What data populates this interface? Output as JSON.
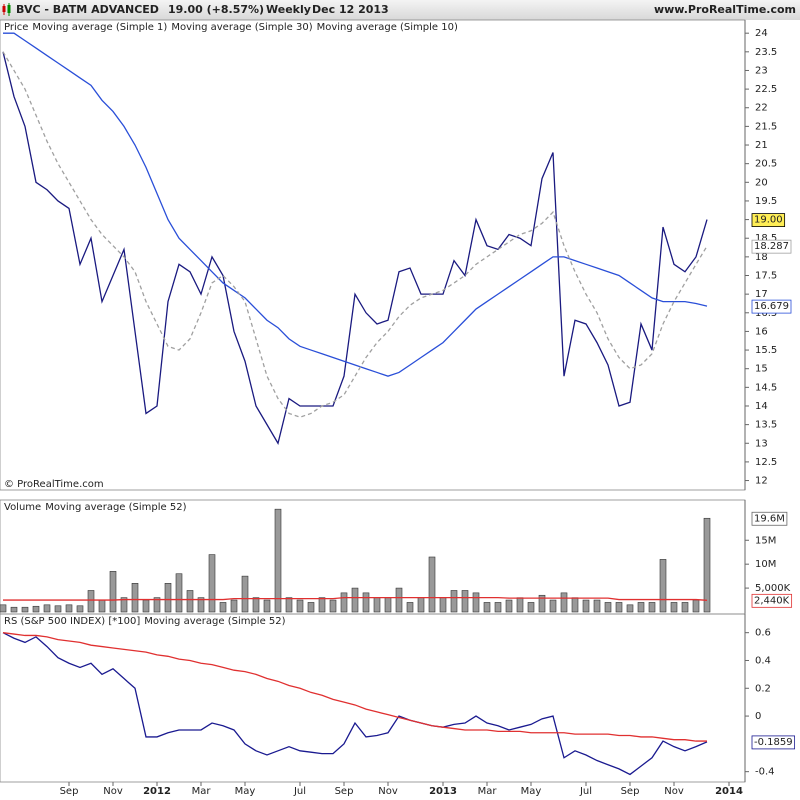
{
  "header": {
    "symbol": "BVC - BATM ADVANCED",
    "quote": "19.00 (+8.57%)",
    "period": "Weekly",
    "date": "Dec 12 2013",
    "site": "www.ProRealTime.com"
  },
  "chart_data": [
    {
      "type": "line",
      "title": "Price",
      "copyright": "© ProRealTime.com",
      "ylim": [
        11.8,
        24.3
      ],
      "yticks": [
        12,
        12.5,
        13,
        13.5,
        14,
        14.5,
        15,
        15.5,
        16,
        16.5,
        17,
        17.5,
        18,
        18.5,
        19,
        19.5,
        20,
        20.5,
        21,
        21.5,
        22,
        22.5,
        23,
        23.5,
        24
      ],
      "series": [
        {
          "name": "Moving average (Simple 1)",
          "color": "#1a1a80",
          "last_label": "19.00",
          "label_fill": "#ffee55",
          "values": [
            23.5,
            22.3,
            21.5,
            20,
            19.8,
            19.5,
            19.3,
            17.8,
            18.5,
            16.8,
            17.5,
            18.2,
            16,
            13.8,
            14,
            16.8,
            17.8,
            17.6,
            17,
            18,
            17.5,
            16,
            15.2,
            14,
            13.5,
            13,
            14.2,
            14,
            14,
            14,
            14,
            14.8,
            17,
            16.5,
            16.2,
            16.3,
            17.6,
            17.7,
            17,
            17,
            17,
            17.9,
            17.5,
            19,
            18.3,
            18.2,
            18.6,
            18.5,
            18.3,
            20.1,
            20.8,
            14.8,
            16.3,
            16.2,
            15.7,
            15.1,
            14,
            14.1,
            16.2,
            15.5,
            18.8,
            17.8,
            17.6,
            18,
            19,
            null,
            null
          ]
        },
        {
          "name": "Moving average (Simple 30)",
          "color": "#2a4fd8",
          "last_label": "16.679",
          "values": [
            24,
            24,
            23.8,
            23.6,
            23.4,
            23.2,
            23,
            22.8,
            22.6,
            22.2,
            21.9,
            21.5,
            21,
            20.4,
            19.7,
            19,
            18.5,
            18.2,
            17.9,
            17.6,
            17.3,
            17.1,
            16.9,
            16.6,
            16.3,
            16.1,
            15.8,
            15.6,
            15.5,
            15.4,
            15.3,
            15.2,
            15.1,
            15,
            14.9,
            14.8,
            14.9,
            15.1,
            15.3,
            15.5,
            15.7,
            16,
            16.3,
            16.6,
            16.8,
            17,
            17.2,
            17.4,
            17.6,
            17.8,
            18,
            18,
            17.9,
            17.8,
            17.7,
            17.6,
            17.5,
            17.3,
            17.1,
            16.9,
            16.8,
            16.8,
            16.8,
            16.75,
            16.679,
            null,
            null
          ]
        },
        {
          "name": "Moving average (Simple 10)",
          "color": "#a0a0a0",
          "line_style": "dashed",
          "last_label": "18.287",
          "values": [
            23.5,
            23,
            22.5,
            21.8,
            21.1,
            20.5,
            20,
            19.5,
            19,
            18.6,
            18.3,
            18,
            17.6,
            16.8,
            16.2,
            15.6,
            15.5,
            15.8,
            16.5,
            17.3,
            17.5,
            17.2,
            16.8,
            15.8,
            14.8,
            14.2,
            13.8,
            13.7,
            13.8,
            14,
            14.1,
            14.3,
            14.8,
            15.3,
            15.7,
            16,
            16.4,
            16.7,
            16.9,
            17,
            17.1,
            17.3,
            17.5,
            17.8,
            18,
            18.2,
            18.4,
            18.6,
            18.7,
            18.9,
            19.2,
            18.3,
            17.6,
            17,
            16.5,
            15.8,
            15.3,
            15,
            15.1,
            15.4,
            16.2,
            16.8,
            17.3,
            17.8,
            18.287,
            null,
            null
          ]
        }
      ]
    },
    {
      "type": "bar",
      "title": "Volume",
      "color": "#999999",
      "last_label": "19.6M",
      "ylim": [
        0,
        23000000
      ],
      "yticks": [
        {
          "value": 5000000,
          "label": "5,000K"
        },
        {
          "value": 10000000,
          "label": "10M"
        },
        {
          "value": 15000000,
          "label": "15M"
        }
      ],
      "values": [
        1500000,
        1000000,
        1000000,
        1200000,
        1500000,
        1300000,
        1500000,
        1300000,
        4500000,
        2500000,
        8500000,
        3000000,
        6000000,
        2500000,
        3000000,
        6000000,
        8000000,
        4500000,
        3000000,
        12000000,
        2000000,
        2500000,
        7500000,
        3000000,
        2500000,
        21500000,
        3000000,
        2500000,
        2000000,
        3000000,
        2500000,
        4000000,
        5000000,
        4000000,
        3000000,
        3000000,
        5000000,
        2000000,
        3000000,
        11500000,
        3000000,
        4500000,
        4500000,
        4000000,
        2000000,
        2000000,
        2500000,
        3000000,
        2000000,
        3500000,
        2500000,
        4000000,
        3000000,
        2500000,
        2500000,
        2000000,
        2000000,
        1500000,
        2000000,
        2000000,
        11000000,
        2000000,
        2000000,
        2500000,
        19600000,
        null,
        null
      ],
      "series": [
        {
          "name": "Moving average (Simple 52)",
          "color": "#e03030",
          "last_label": "2,440K",
          "values": [
            2500000,
            2500000,
            2500000,
            2500000,
            2500000,
            2500000,
            2500000,
            2500000,
            2500000,
            2500000,
            2500000,
            2600000,
            2600000,
            2600000,
            2600000,
            2600000,
            2600000,
            2600000,
            2600000,
            2600000,
            2600000,
            2800000,
            2800000,
            2800000,
            2800000,
            2800000,
            2800000,
            2800000,
            2800000,
            2800000,
            2800000,
            3000000,
            3000000,
            3000000,
            3000000,
            3000000,
            3000000,
            3000000,
            3000000,
            3000000,
            3000000,
            3000000,
            3000000,
            3000000,
            3000000,
            3000000,
            2900000,
            2900000,
            2900000,
            2900000,
            2900000,
            2900000,
            2900000,
            2900000,
            2900000,
            2900000,
            2600000,
            2600000,
            2600000,
            2600000,
            2600000,
            2600000,
            2600000,
            2600000,
            2440000,
            null,
            null
          ]
        }
      ]
    },
    {
      "type": "line",
      "ylim": [
        -0.46,
        0.72
      ],
      "yticks": [
        -0.4,
        0,
        0.2,
        0.4,
        0.6
      ],
      "categories": [
        null,
        null,
        null,
        null,
        null,
        null,
        "Sep",
        null,
        null,
        null,
        "Nov",
        null,
        null,
        null,
        "2012",
        null,
        null,
        null,
        "Mar",
        null,
        null,
        null,
        "May",
        null,
        null,
        null,
        null,
        "Jul",
        null,
        null,
        null,
        "Sep",
        null,
        null,
        null,
        "Nov",
        null,
        null,
        null,
        null,
        "2013",
        null,
        null,
        null,
        "Mar",
        null,
        null,
        null,
        "May",
        null,
        null,
        null,
        null,
        "Jul",
        null,
        null,
        null,
        "Sep",
        null,
        null,
        null,
        "Nov",
        null,
        null,
        null,
        null,
        "2014"
      ],
      "series": [
        {
          "name": "RS (S&P 500 INDEX) [*100]",
          "color": "#1a1a90",
          "last_label": "-0.1859",
          "values": [
            0.6,
            0.56,
            0.53,
            0.57,
            0.5,
            0.42,
            0.38,
            0.35,
            0.38,
            0.3,
            0.34,
            0.27,
            0.2,
            -0.15,
            -0.15,
            -0.12,
            -0.1,
            -0.1,
            -0.1,
            -0.05,
            -0.07,
            -0.1,
            -0.2,
            -0.25,
            -0.28,
            -0.25,
            -0.22,
            -0.25,
            -0.26,
            -0.27,
            -0.27,
            -0.2,
            -0.05,
            -0.15,
            -0.14,
            -0.12,
            0,
            -0.03,
            -0.05,
            -0.07,
            -0.08,
            -0.06,
            -0.05,
            0,
            -0.05,
            -0.07,
            -0.1,
            -0.08,
            -0.06,
            -0.02,
            0,
            -0.3,
            -0.25,
            -0.28,
            -0.32,
            -0.35,
            -0.38,
            -0.42,
            -0.36,
            -0.3,
            -0.18,
            -0.22,
            -0.25,
            -0.22,
            -0.1859,
            null,
            null
          ]
        },
        {
          "name": "Moving average (Simple 52)",
          "color": "#e03030",
          "values": [
            0.6,
            0.59,
            0.58,
            0.58,
            0.57,
            0.55,
            0.54,
            0.53,
            0.51,
            0.5,
            0.49,
            0.48,
            0.47,
            0.46,
            0.44,
            0.43,
            0.41,
            0.4,
            0.38,
            0.37,
            0.35,
            0.33,
            0.32,
            0.3,
            0.27,
            0.25,
            0.22,
            0.2,
            0.17,
            0.15,
            0.12,
            0.1,
            0.08,
            0.05,
            0.03,
            0.01,
            -0.01,
            -0.03,
            -0.05,
            -0.07,
            -0.08,
            -0.09,
            -0.1,
            -0.1,
            -0.1,
            -0.11,
            -0.11,
            -0.11,
            -0.12,
            -0.12,
            -0.12,
            -0.12,
            -0.13,
            -0.13,
            -0.13,
            -0.13,
            -0.14,
            -0.14,
            -0.15,
            -0.15,
            -0.16,
            -0.17,
            -0.17,
            -0.18,
            -0.18,
            null,
            null
          ]
        }
      ]
    }
  ]
}
